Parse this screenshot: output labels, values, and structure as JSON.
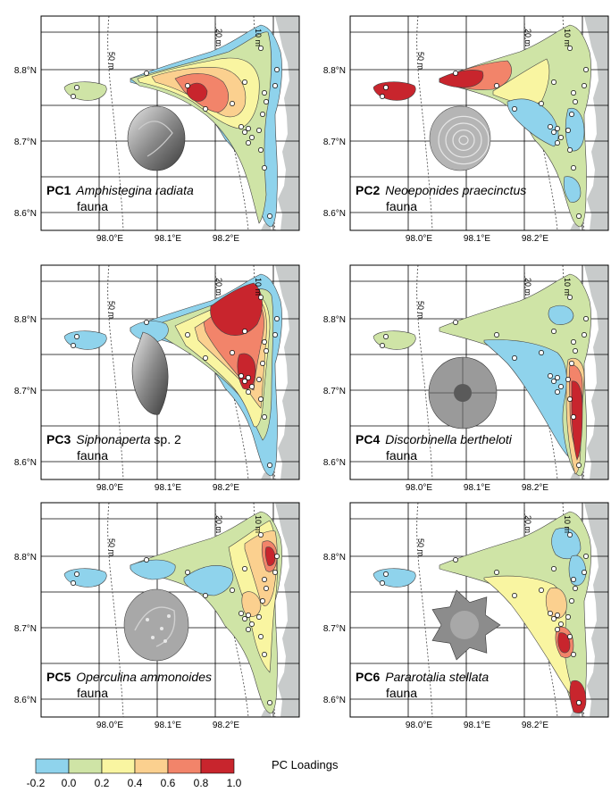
{
  "panels": [
    {
      "code": "PC1",
      "species": "Amphistegina radiata",
      "suffix": "",
      "line2": "fauna",
      "shell": "amphistegina"
    },
    {
      "code": "PC2",
      "species": "Neoeponides praecinctus",
      "suffix": "",
      "line2": "fauna",
      "shell": "neoeponides"
    },
    {
      "code": "PC3",
      "species": "Siphonaperta",
      "suffix": " sp. 2",
      "line2": "fauna",
      "shell": "siphonaperta"
    },
    {
      "code": "PC4",
      "species": "Discorbinella bertheloti",
      "suffix": "",
      "line2": "fauna",
      "shell": "discorbinella"
    },
    {
      "code": "PC5",
      "species": "Operculina ammonoides",
      "suffix": "",
      "line2": "fauna",
      "shell": "operculina"
    },
    {
      "code": "PC6",
      "species": "Pararotalia stellata",
      "suffix": "",
      "line2": "fauna",
      "shell": "pararotalia"
    }
  ],
  "axes": {
    "lat_labels": [
      "8.8°N",
      "8.7°N",
      "8.6°N"
    ],
    "lon_labels": [
      "98.0°E",
      "98.1°E",
      "98.2°E"
    ]
  },
  "depth_labels": [
    "50 m",
    "20 m",
    "10 m"
  ],
  "legend": {
    "title": "PC Loadings",
    "ticks": [
      "-0.2",
      "0.0",
      "0.2",
      "0.4",
      "0.6",
      "0.8",
      "1.0"
    ],
    "colors": [
      "#8fd3ec",
      "#cfe4a6",
      "#f9f5a1",
      "#fbd08f",
      "#f2846a",
      "#c8252d"
    ]
  },
  "colors": {
    "land": "#c8cbcb",
    "frame": "#000000",
    "sample": "#ffffff",
    "right_edge": "#d6337a"
  }
}
